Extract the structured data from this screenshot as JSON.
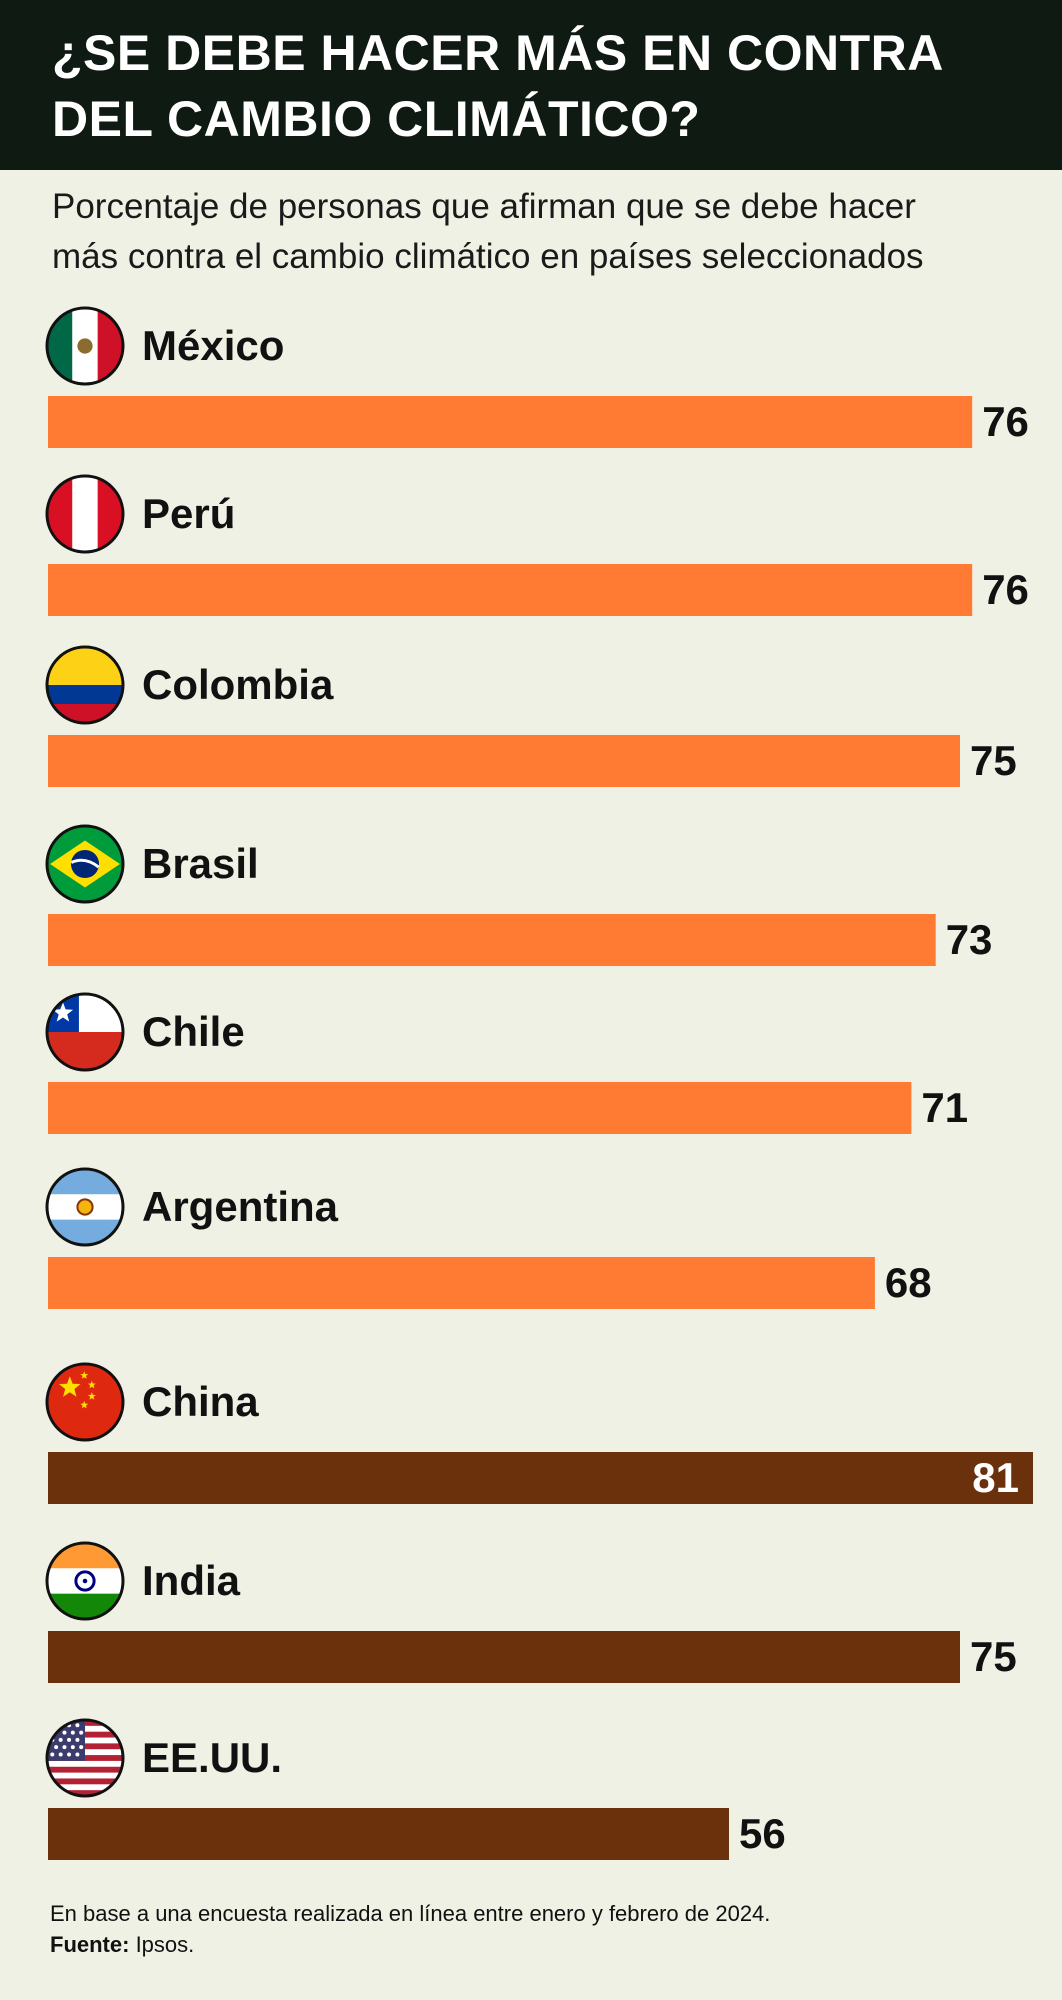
{
  "title": "¿SE DEBE HACER MÁS EN CONTRA\nDEL CAMBIO CLIMÁTICO?",
  "subtitle": "Porcentaje de personas que afirman que se debe hacer\nmás contra el cambio climático en países seleccionados",
  "footer": {
    "note": "En base a una encuesta realizada en línea entre enero y febrero de 2024.",
    "source_label": "Fuente:",
    "source_value": " Ipsos."
  },
  "colors": {
    "header_bg": "#0f1a12",
    "background": "#eef1e4",
    "latam_bar": "#ff7a33",
    "other_bar": "#6b300c"
  },
  "chart_data": {
    "type": "bar",
    "orientation": "horizontal",
    "unit": "%",
    "categories": [
      "México",
      "Perú",
      "Colombia",
      "Brasil",
      "Chile",
      "Argentina",
      "China",
      "India",
      "EE.UU."
    ],
    "values": [
      76,
      76,
      75,
      73,
      71,
      68,
      81,
      75,
      56
    ],
    "groups": [
      "latam",
      "latam",
      "latam",
      "latam",
      "latam",
      "latam",
      "other",
      "other",
      "other"
    ],
    "flags": [
      "mexico-flag-icon",
      "peru-flag-icon",
      "colombia-flag-icon",
      "brazil-flag-icon",
      "chile-flag-icon",
      "argentina-flag-icon",
      "china-flag-icon",
      "india-flag-icon",
      "usa-flag-icon"
    ],
    "xlim": [
      0,
      81
    ],
    "grid": false,
    "legend": "none"
  }
}
